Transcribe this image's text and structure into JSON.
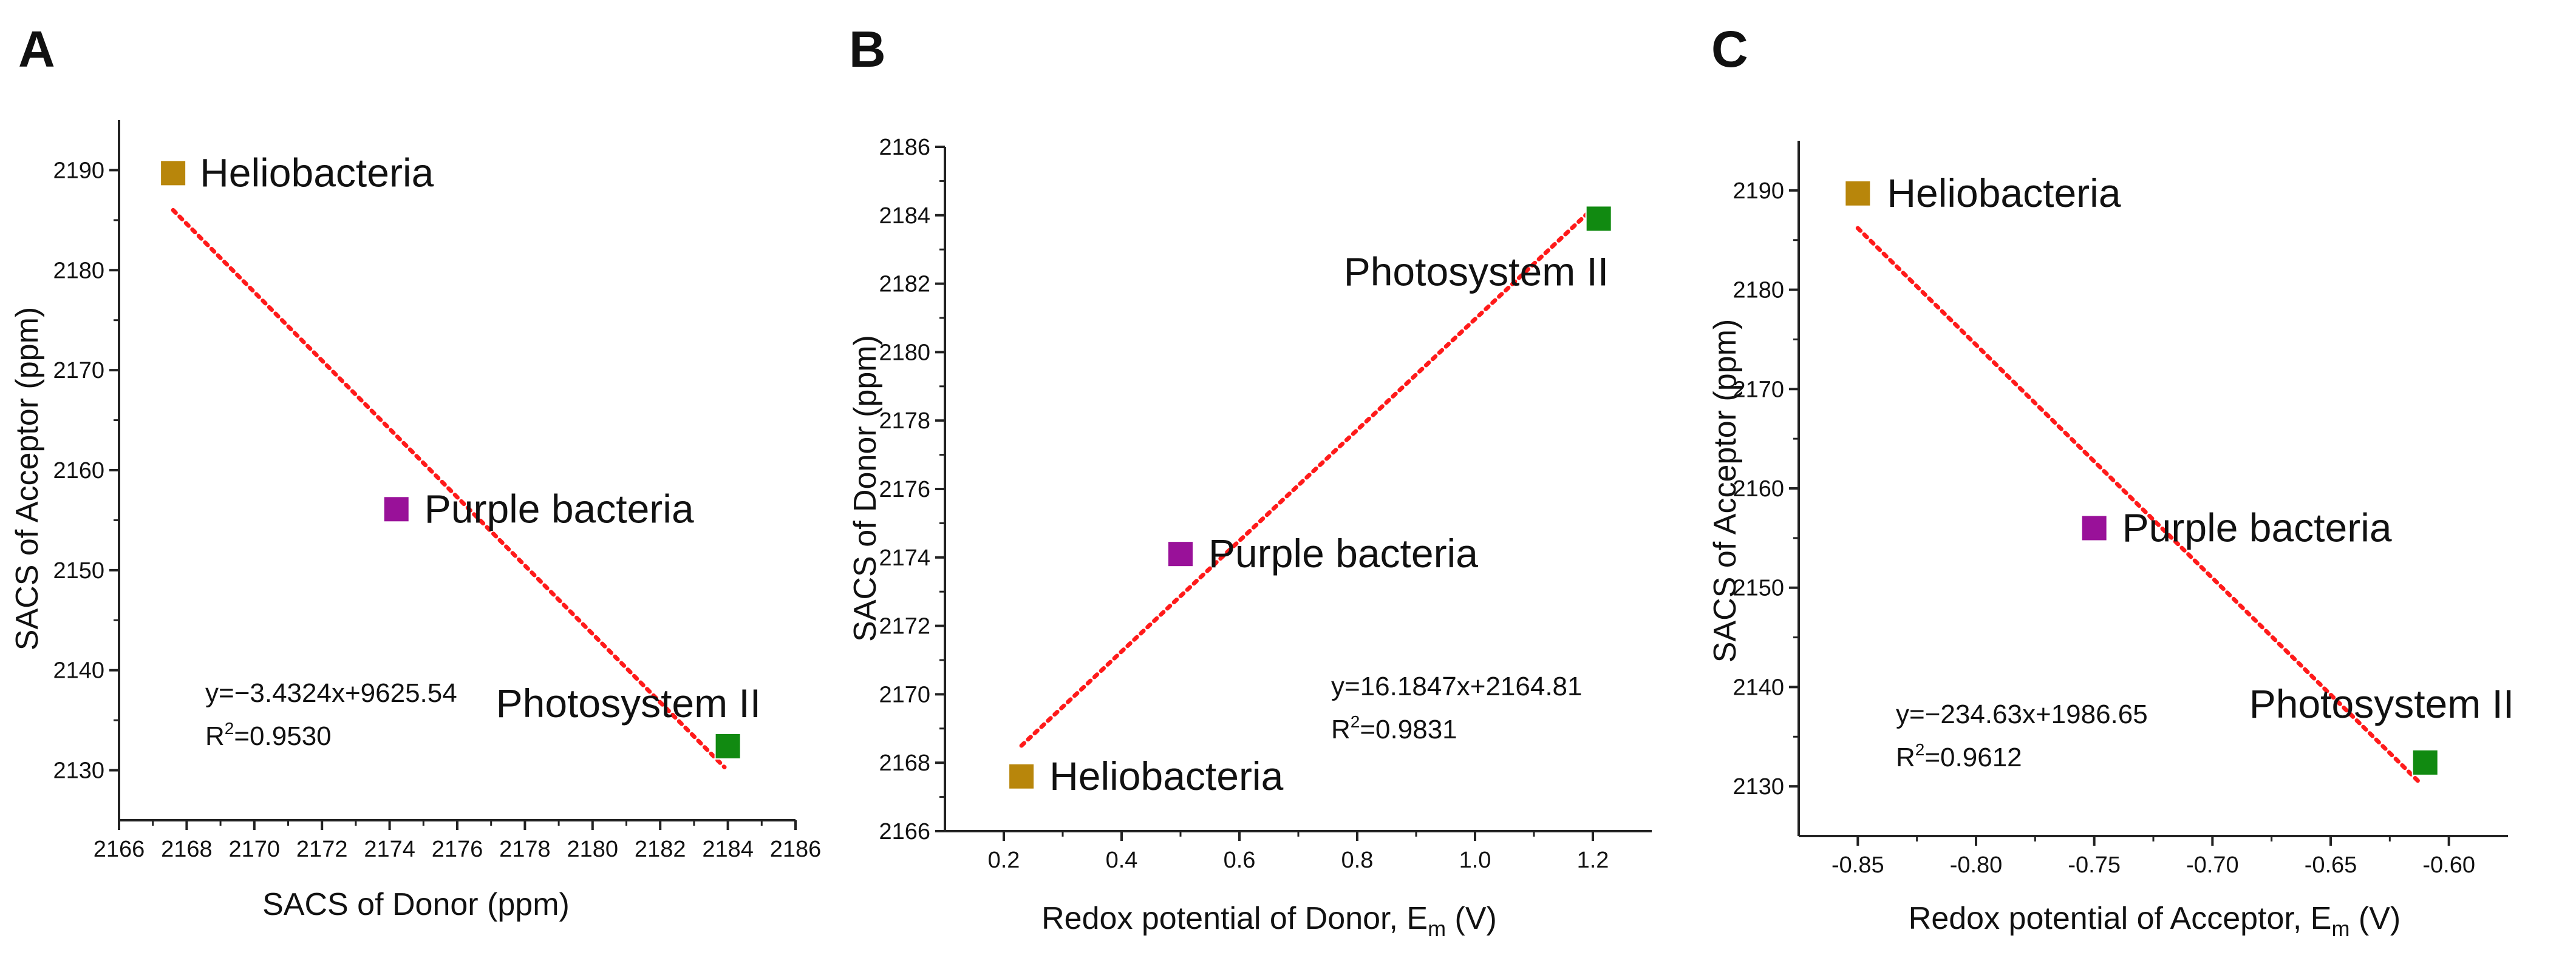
{
  "chart_data": [
    {
      "panel": "A",
      "type": "scatter",
      "xlabel": "SACS of Donor (ppm)",
      "ylabel": "SACS of Acceptor (ppm)",
      "xlim": [
        2166,
        2186
      ],
      "ylim": [
        2125,
        2195
      ],
      "xticks": [
        2166,
        2168,
        2170,
        2172,
        2174,
        2176,
        2178,
        2180,
        2182,
        2184,
        2186
      ],
      "yticks": [
        2130,
        2140,
        2150,
        2160,
        2170,
        2180,
        2190
      ],
      "points": [
        {
          "label": "Heliobacteria",
          "x": 2167.6,
          "y": 2189.7,
          "color": "#B8860B"
        },
        {
          "label": "Purple bacteria",
          "x": 2174.2,
          "y": 2156.1,
          "color": "#991199"
        },
        {
          "label": "Photosystem II",
          "x": 2184.0,
          "y": 2132.4,
          "color": "#118A11"
        }
      ],
      "fit": {
        "x": [
          2167.6,
          2183.9
        ],
        "y": [
          2186.0,
          2130.3
        ],
        "color": "#FF1A1A"
      },
      "equation": "y=−3.4324x+9625.54",
      "r2_prefix": "R",
      "r2_sup": "2",
      "r2_value": "=0.9530"
    },
    {
      "panel": "B",
      "type": "scatter",
      "xlabel": "Redox potential of Donor, E",
      "xlabel_sub": "m",
      "xlabel_suffix": " (V)",
      "ylabel": "SACS of Donor (ppm)",
      "xlim": [
        0.1,
        1.3
      ],
      "ylim": [
        2166,
        2186
      ],
      "xticks": [
        "0.2",
        "0.4",
        "0.6",
        "0.8",
        "1.0",
        "1.2"
      ],
      "yticks": [
        2166,
        2168,
        2170,
        2172,
        2174,
        2176,
        2178,
        2180,
        2182,
        2184,
        2186
      ],
      "points": [
        {
          "label": "Heliobacteria",
          "x": 0.23,
          "y": 2167.6,
          "color": "#B8860B"
        },
        {
          "label": "Purple bacteria",
          "x": 0.5,
          "y": 2174.1,
          "color": "#991199"
        },
        {
          "label": "Photosystem II",
          "x": 1.21,
          "y": 2183.9,
          "color": "#118A11"
        }
      ],
      "fit": {
        "x": [
          0.23,
          1.2
        ],
        "y": [
          2168.5,
          2184.2
        ],
        "color": "#FF1A1A"
      },
      "equation": "y=16.1847x+2164.81",
      "r2_prefix": "R",
      "r2_sup": "2",
      "r2_value": "=0.9831"
    },
    {
      "panel": "C",
      "type": "scatter",
      "xlabel": "Redox potential of Acceptor, E",
      "xlabel_sub": "m",
      "xlabel_suffix": " (V)",
      "ylabel": "SACS of Acceptor (ppm)",
      "xlim": [
        -0.875,
        -0.575
      ],
      "ylim": [
        2125,
        2195
      ],
      "xticks": [
        "-0.85",
        "-0.80",
        "-0.75",
        "-0.70",
        "-0.65",
        "-0.60"
      ],
      "yticks": [
        2130,
        2140,
        2150,
        2160,
        2170,
        2180,
        2190
      ],
      "points": [
        {
          "label": "Heliobacteria",
          "x": -0.85,
          "y": 2189.7,
          "color": "#B8860B"
        },
        {
          "label": "Purple bacteria",
          "x": -0.75,
          "y": 2156.0,
          "color": "#991199"
        },
        {
          "label": "Photosystem II",
          "x": -0.61,
          "y": 2132.4,
          "color": "#118A11"
        }
      ],
      "fit": {
        "x": [
          -0.85,
          -0.612
        ],
        "y": [
          2186.2,
          2130.3
        ],
        "color": "#FF1A1A"
      },
      "equation": "y=−234.63x+1986.65",
      "r2_prefix": "R",
      "r2_sup": "2",
      "r2_value": "=0.9612"
    }
  ]
}
